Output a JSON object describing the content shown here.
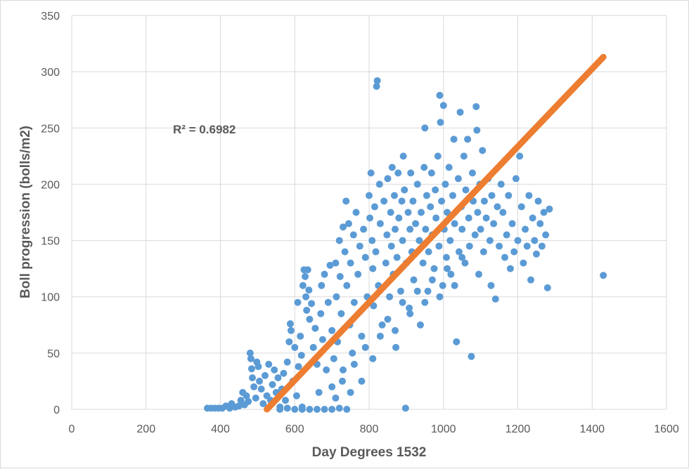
{
  "chart_data": {
    "type": "scatter",
    "xlabel": "Day Degrees 1532",
    "ylabel": "Boll progression (bolls/m2)",
    "xlim": [
      0,
      1600
    ],
    "ylim": [
      0,
      350
    ],
    "xticks": [
      0,
      200,
      400,
      600,
      800,
      1000,
      1200,
      1400,
      1600
    ],
    "yticks": [
      0,
      50,
      100,
      150,
      200,
      250,
      300,
      350
    ],
    "xtick_labels": [
      "0",
      "200",
      "400",
      "600",
      "800",
      "1000",
      "1200",
      "1400",
      "1600"
    ],
    "ytick_labels": [
      "0",
      "50",
      "100",
      "150",
      "200",
      "250",
      "300",
      "350"
    ],
    "grid": true,
    "annotation": "R² = 0.6982",
    "series": [
      {
        "color": "#5b9bd5",
        "points": [
          [
            365,
            1
          ],
          [
            375,
            1
          ],
          [
            385,
            1
          ],
          [
            395,
            1
          ],
          [
            405,
            1
          ],
          [
            415,
            3
          ],
          [
            425,
            1
          ],
          [
            430,
            5
          ],
          [
            440,
            2
          ],
          [
            450,
            3
          ],
          [
            455,
            8
          ],
          [
            460,
            15
          ],
          [
            465,
            4
          ],
          [
            470,
            12
          ],
          [
            475,
            7
          ],
          [
            480,
            50
          ],
          [
            482,
            45
          ],
          [
            484,
            36
          ],
          [
            486,
            28
          ],
          [
            490,
            20
          ],
          [
            495,
            10
          ],
          [
            498,
            42
          ],
          [
            502,
            38
          ],
          [
            505,
            25
          ],
          [
            510,
            18
          ],
          [
            515,
            5
          ],
          [
            520,
            30
          ],
          [
            525,
            12
          ],
          [
            530,
            40
          ],
          [
            535,
            8
          ],
          [
            540,
            22
          ],
          [
            545,
            35
          ],
          [
            550,
            15
          ],
          [
            555,
            28
          ],
          [
            560,
            2
          ],
          [
            565,
            18
          ],
          [
            570,
            32
          ],
          [
            575,
            8
          ],
          [
            580,
            42
          ],
          [
            585,
            60
          ],
          [
            588,
            76
          ],
          [
            590,
            70
          ],
          [
            595,
            25
          ],
          [
            600,
            55
          ],
          [
            605,
            12
          ],
          [
            608,
            95
          ],
          [
            610,
            38
          ],
          [
            615,
            65
          ],
          [
            618,
            48
          ],
          [
            620,
            2
          ],
          [
            622,
            110
          ],
          [
            625,
            124
          ],
          [
            628,
            118
          ],
          [
            630,
            100
          ],
          [
            632,
            88
          ],
          [
            635,
            124
          ],
          [
            638,
            106
          ],
          [
            640,
            80
          ],
          [
            645,
            94
          ],
          [
            650,
            55
          ],
          [
            655,
            72
          ],
          [
            660,
            40
          ],
          [
            665,
            15
          ],
          [
            670,
            85
          ],
          [
            672,
            110
          ],
          [
            675,
            62
          ],
          [
            680,
            120
          ],
          [
            685,
            35
          ],
          [
            690,
            95
          ],
          [
            695,
            128
          ],
          [
            700,
            70
          ],
          [
            705,
            45
          ],
          [
            710,
            130
          ],
          [
            712,
            100
          ],
          [
            715,
            60
          ],
          [
            720,
            150
          ],
          [
            722,
            118
          ],
          [
            725,
            85
          ],
          [
            728,
            25
          ],
          [
            730,
            162
          ],
          [
            735,
            140
          ],
          [
            738,
            185
          ],
          [
            740,
            110
          ],
          [
            745,
            165
          ],
          [
            748,
            75
          ],
          [
            750,
            130
          ],
          [
            755,
            50
          ],
          [
            758,
            155
          ],
          [
            760,
            95
          ],
          [
            765,
            175
          ],
          [
            770,
            120
          ],
          [
            775,
            145
          ],
          [
            780,
            65
          ],
          [
            785,
            160
          ],
          [
            790,
            135
          ],
          [
            795,
            100
          ],
          [
            800,
            190
          ],
          [
            802,
            170
          ],
          [
            805,
            210
          ],
          [
            808,
            150
          ],
          [
            810,
            125
          ],
          [
            812,
            92
          ],
          [
            815,
            180
          ],
          [
            818,
            140
          ],
          [
            820,
            287
          ],
          [
            822,
            292
          ],
          [
            825,
            110
          ],
          [
            828,
            200
          ],
          [
            830,
            165
          ],
          [
            835,
            75
          ],
          [
            840,
            185
          ],
          [
            845,
            130
          ],
          [
            848,
            155
          ],
          [
            850,
            205
          ],
          [
            855,
            100
          ],
          [
            858,
            175
          ],
          [
            860,
            145
          ],
          [
            862,
            215
          ],
          [
            865,
            120
          ],
          [
            868,
            190
          ],
          [
            870,
            160
          ],
          [
            872,
            55
          ],
          [
            875,
            135
          ],
          [
            878,
            210
          ],
          [
            880,
            170
          ],
          [
            885,
            105
          ],
          [
            888,
            185
          ],
          [
            890,
            150
          ],
          [
            892,
            225
          ],
          [
            895,
            195
          ],
          [
            898,
            1
          ],
          [
            900,
            130
          ],
          [
            905,
            175
          ],
          [
            908,
            90
          ],
          [
            910,
            160
          ],
          [
            912,
            210
          ],
          [
            915,
            140
          ],
          [
            918,
            185
          ],
          [
            920,
            115
          ],
          [
            925,
            165
          ],
          [
            930,
            200
          ],
          [
            935,
            150
          ],
          [
            938,
            75
          ],
          [
            940,
            175
          ],
          [
            945,
            130
          ],
          [
            948,
            215
          ],
          [
            950,
            250
          ],
          [
            952,
            160
          ],
          [
            955,
            190
          ],
          [
            958,
            105
          ],
          [
            960,
            140
          ],
          [
            965,
            180
          ],
          [
            968,
            210
          ],
          [
            970,
            155
          ],
          [
            975,
            125
          ],
          [
            978,
            195
          ],
          [
            980,
            170
          ],
          [
            985,
            225
          ],
          [
            988,
            145
          ],
          [
            990,
            279
          ],
          [
            992,
            255
          ],
          [
            995,
            185
          ],
          [
            998,
            110
          ],
          [
            1000,
            270
          ],
          [
            1002,
            160
          ],
          [
            1005,
            200
          ],
          [
            1008,
            135
          ],
          [
            1010,
            175
          ],
          [
            1015,
            215
          ],
          [
            1018,
            150
          ],
          [
            1020,
            120
          ],
          [
            1025,
            190
          ],
          [
            1028,
            240
          ],
          [
            1030,
            165
          ],
          [
            1035,
            60
          ],
          [
            1040,
            205
          ],
          [
            1042,
            140
          ],
          [
            1045,
            264
          ],
          [
            1048,
            180
          ],
          [
            1050,
            160
          ],
          [
            1055,
            225
          ],
          [
            1058,
            130
          ],
          [
            1060,
            195
          ],
          [
            1065,
            240
          ],
          [
            1068,
            170
          ],
          [
            1070,
            145
          ],
          [
            1075,
            47
          ],
          [
            1078,
            210
          ],
          [
            1080,
            185
          ],
          [
            1085,
            155
          ],
          [
            1088,
            269
          ],
          [
            1090,
            248
          ],
          [
            1092,
            175
          ],
          [
            1095,
            120
          ],
          [
            1098,
            200
          ],
          [
            1100,
            160
          ],
          [
            1105,
            230
          ],
          [
            1108,
            140
          ],
          [
            1110,
            185
          ],
          [
            1115,
            170
          ],
          [
            1120,
            205
          ],
          [
            1125,
            150
          ],
          [
            1128,
            110
          ],
          [
            1130,
            190
          ],
          [
            1135,
            165
          ],
          [
            1140,
            98
          ],
          [
            1145,
            180
          ],
          [
            1150,
            145
          ],
          [
            1155,
            200
          ],
          [
            1160,
            175
          ],
          [
            1165,
            135
          ],
          [
            1170,
            155
          ],
          [
            1175,
            190
          ],
          [
            1180,
            125
          ],
          [
            1185,
            165
          ],
          [
            1190,
            140
          ],
          [
            1195,
            205
          ],
          [
            1200,
            150
          ],
          [
            1205,
            225
          ],
          [
            1210,
            180
          ],
          [
            1215,
            130
          ],
          [
            1220,
            160
          ],
          [
            1225,
            145
          ],
          [
            1230,
            190
          ],
          [
            1235,
            115
          ],
          [
            1240,
            170
          ],
          [
            1245,
            150
          ],
          [
            1250,
            138
          ],
          [
            1255,
            185
          ],
          [
            1260,
            165
          ],
          [
            1265,
            145
          ],
          [
            1270,
            175
          ],
          [
            1275,
            155
          ],
          [
            1280,
            108
          ],
          [
            1285,
            178
          ],
          [
            1430,
            119
          ],
          [
            600,
            0
          ],
          [
            620,
            0
          ],
          [
            640,
            0
          ],
          [
            660,
            0
          ],
          [
            680,
            0
          ],
          [
            700,
            0
          ],
          [
            720,
            1
          ],
          [
            740,
            0
          ],
          [
            560,
            0
          ],
          [
            580,
            1
          ],
          [
            700,
            20
          ],
          [
            710,
            10
          ],
          [
            730,
            35
          ],
          [
            750,
            15
          ],
          [
            760,
            40
          ],
          [
            780,
            25
          ],
          [
            790,
            55
          ],
          [
            810,
            45
          ],
          [
            830,
            65
          ],
          [
            850,
            80
          ],
          [
            870,
            70
          ],
          [
            890,
            95
          ],
          [
            910,
            85
          ],
          [
            930,
            105
          ],
          [
            950,
            95
          ],
          [
            970,
            115
          ],
          [
            990,
            100
          ],
          [
            1010,
            125
          ],
          [
            1030,
            110
          ],
          [
            1050,
            135
          ]
        ]
      }
    ],
    "trendline": {
      "color": "#ed7d31",
      "x": [
        525,
        1430
      ],
      "y": [
        0,
        313
      ]
    }
  }
}
